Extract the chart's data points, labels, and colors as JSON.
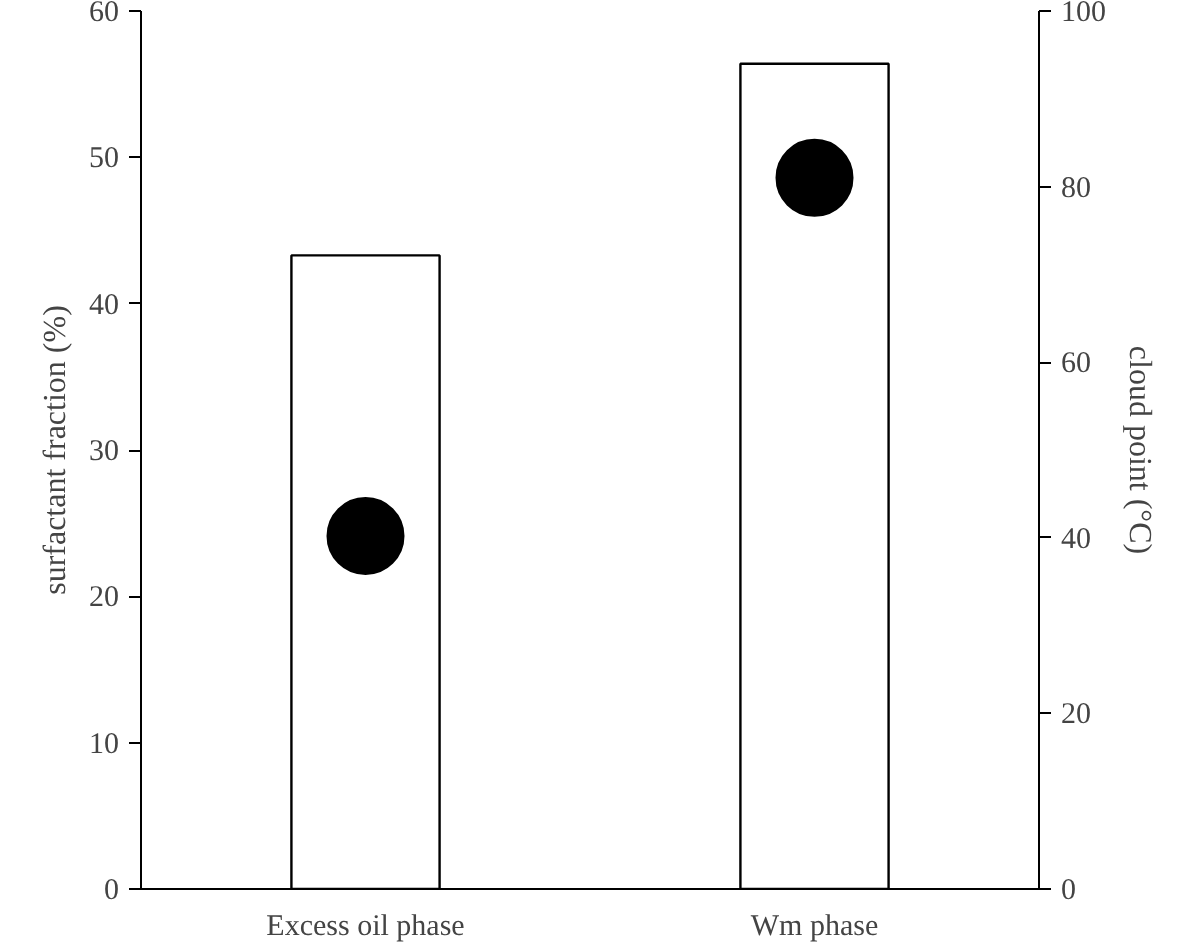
{
  "chart_data": {
    "type": "bar",
    "categories": [
      "Excess oil phase",
      "Wm phase"
    ],
    "ylabel": "surfactant fraction (%)",
    "y2label": "cloud point (°C)",
    "ylim": [
      0,
      60
    ],
    "yticks": [
      0,
      10,
      20,
      30,
      40,
      50,
      60
    ],
    "y2lim": [
      0,
      100
    ],
    "y2ticks": [
      0,
      20,
      40,
      60,
      80,
      100
    ],
    "grid": false,
    "series": [
      {
        "color": "#ffffff",
        "values": [
          43.3,
          56.4
        ]
      },
      {
        "type": "scatter",
        "axis": "y2",
        "marker": "circle",
        "color": "#000000",
        "x": [
          "Excess oil phase",
          "Wm phase"
        ],
        "values": [
          40.2,
          81.0
        ]
      }
    ]
  }
}
